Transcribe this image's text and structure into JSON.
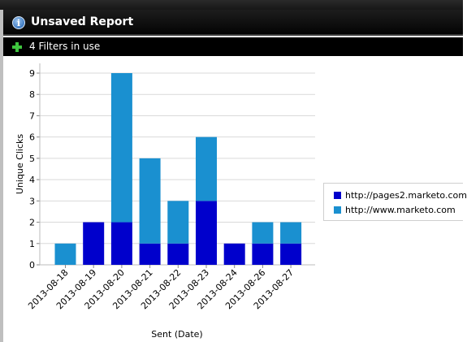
{
  "report": {
    "title": "Unsaved Report",
    "filters_label": "4 Filters in use"
  },
  "colors": {
    "pages2": "#0000cc",
    "www": "#1a90d0",
    "grid": "#d9d9d9"
  },
  "chart_data": {
    "type": "bar",
    "stacked": true,
    "categories": [
      "2013-08-18",
      "2013-08-19",
      "2013-08-20",
      "2013-08-21",
      "2013-08-22",
      "2013-08-23",
      "2013-08-24",
      "2013-08-26",
      "2013-08-27"
    ],
    "series": [
      {
        "name": "http://pages2.marketo.com",
        "values": [
          0,
          2,
          2,
          1,
          1,
          3,
          1,
          1,
          1
        ]
      },
      {
        "name": "http://www.marketo.com",
        "values": [
          1,
          0,
          7,
          4,
          2,
          3,
          0,
          1,
          1
        ]
      }
    ],
    "xlabel": "Sent (Date)",
    "ylabel": "Unique Clicks",
    "ylim": [
      0,
      9
    ],
    "yticks": [
      0,
      1,
      2,
      3,
      4,
      5,
      6,
      7,
      8,
      9
    ],
    "grid": true,
    "legend_position": "right"
  },
  "legend": {
    "items": [
      {
        "label": "http://pages2.marketo.com"
      },
      {
        "label": "http://www.marketo.com"
      }
    ]
  }
}
